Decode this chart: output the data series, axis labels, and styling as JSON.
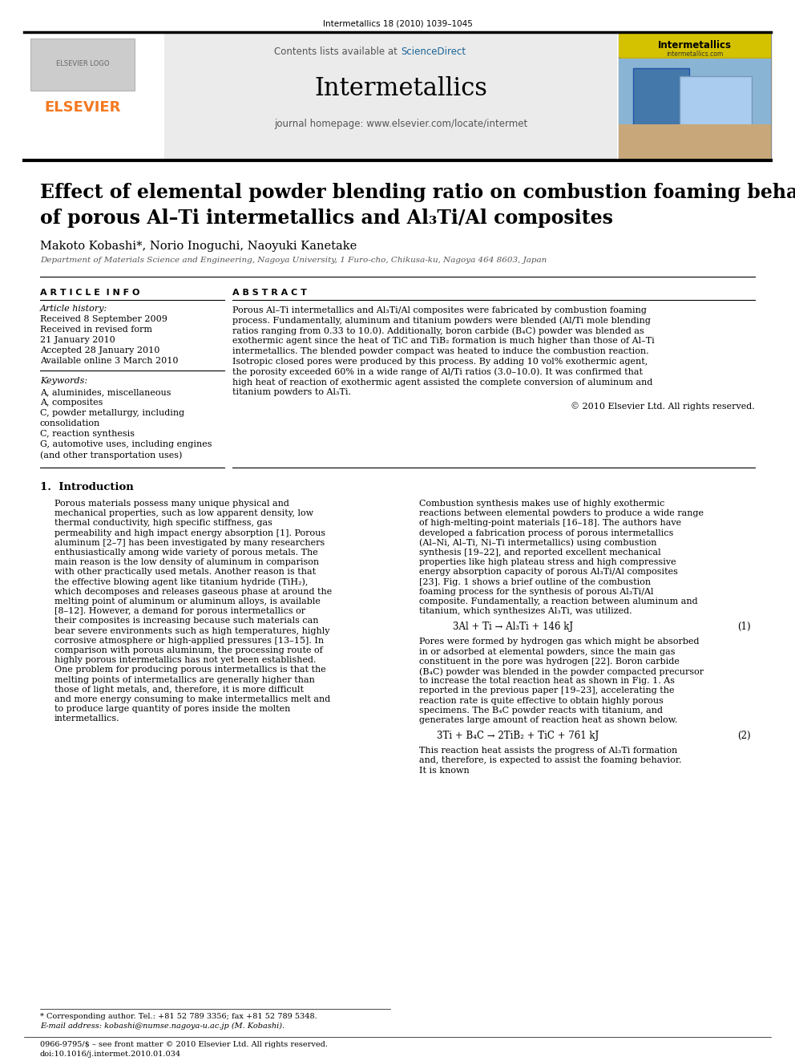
{
  "journal_ref": "Intermetallics 18 (2010) 1039–1045",
  "contents_line": "Contents lists available at ScienceDirect",
  "sciencedirect_color": "#1a6496",
  "journal_name": "Intermetallics",
  "journal_homepage": "journal homepage: www.elsevier.com/locate/intermet",
  "elsevier_color": "#f47920",
  "title_line1": "Effect of elemental powder blending ratio on combustion foaming behavior",
  "title_line2": "of porous Al–Ti intermetallics and Al₃Ti/Al composites",
  "authors": "Makoto Kobashi*, Norio Inoguchi, Naoyuki Kanetake",
  "affiliation": "Department of Materials Science and Engineering, Nagoya University, 1 Furo-cho, Chikusa-ku, Nagoya 464 8603, Japan",
  "article_info_header": "A R T I C L E  I N F O",
  "article_history_label": "Article history:",
  "history_items": [
    "Received 8 September 2009",
    "Received in revised form",
    "21 January 2010",
    "Accepted 28 January 2010",
    "Available online 3 March 2010"
  ],
  "keywords_label": "Keywords:",
  "keywords": [
    "A, aluminides, miscellaneous",
    "A, composites",
    "C, powder metallurgy, including",
    "consolidation",
    "C, reaction synthesis",
    "G, automotive uses, including engines",
    "(and other transportation uses)"
  ],
  "abstract_header": "A B S T R A C T",
  "abstract_text": "Porous Al–Ti intermetallics and Al₃Ti/Al composites were fabricated by combustion foaming process. Fundamentally, aluminum and titanium powders were blended (Al/Ti mole blending ratios ranging from 0.33 to 10.0). Additionally, boron carbide (B₄C) powder was blended as exothermic agent since the heat of TiC and TiB₂ formation is much higher than those of Al–Ti intermetallics. The blended powder compact was heated to induce the combustion reaction. Isotropic closed pores were produced by this process. By adding 10 vol% exothermic agent, the porosity exceeded 60% in a wide range of Al/Ti ratios (3.0–10.0). It was confirmed that high heat of reaction of exothermic agent assisted the complete conversion of aluminum and titanium powders to Al₃Ti.",
  "copyright": "© 2010 Elsevier Ltd. All rights reserved.",
  "intro_header": "1.  Introduction",
  "intro_col1": "Porous materials possess many unique physical and mechanical properties, such as low apparent density, low thermal conductivity, high specific stiffness, gas permeability and high impact energy absorption [1]. Porous aluminum [2–7] has been investigated by many researchers enthusiastically among wide variety of porous metals. The main reason is the low density of aluminum in comparison with other practically used metals. Another reason is that the effective blowing agent like titanium hydride (TiH₂), which decomposes and releases gaseous phase at around the melting point of aluminum or aluminum alloys, is available [8–12]. However, a demand for porous intermetallics or their composites is increasing because such materials can bear severe environments such as high temperatures, highly corrosive atmosphere or high-applied pressures [13–15]. In comparison with porous aluminum, the processing route of highly porous intermetallics has not yet been established. One problem for producing porous intermetallics is that the melting points of intermetallics are generally higher than those of light metals, and, therefore, it is more difficult and more energy consuming to make intermetallics melt and to produce large quantity of pores inside the molten intermetallics.",
  "intro_col2": "Combustion synthesis makes use of highly exothermic reactions between elemental powders to produce a wide range of high-melting-point materials [16–18]. The authors have developed a fabrication process of porous intermetallics (Al–Ni, Al–Ti, Ni–Ti intermetallics) using combustion synthesis [19–22], and reported excellent mechanical properties like high plateau stress and high compressive energy absorption capacity of porous Al₃Ti/Al composites [23]. Fig. 1 shows a brief outline of the combustion foaming process for the synthesis of porous Al₃Ti/Al composite. Fundamentally, a reaction between aluminum and titanium, which synthesizes Al₃Ti, was utilized.",
  "equation1": "3Al + Ti → Al₃Ti + 146 kJ",
  "eq1_num": "(1)",
  "para_after_eq1": "Pores were formed by hydrogen gas which might be absorbed in or adsorbed at elemental powders, since the main gas constituent in the pore was hydrogen [22]. Boron carbide (B₄C) powder was blended in the powder compacted precursor to increase the total reaction heat as shown in Fig. 1. As reported in the previous paper [19–23], accelerating the reaction rate is quite effective to obtain highly porous specimens. The B₄C powder reacts with titanium, and generates large amount of reaction heat as shown below.",
  "equation2": "3Ti + B₄C → 2TiB₂ + TiC + 761 kJ",
  "eq2_num": "(2)",
  "para_after_eq2": "This reaction heat assists the progress of Al₃Ti formation and, therefore, is expected to assist the foaming behavior. It is known",
  "footnote_star": "* Corresponding author. Tel.: +81 52 789 3356; fax +81 52 789 5348.",
  "footnote_email": "E-mail address: kobashi@numse.nagoya-u.ac.jp (M. Kobashi).",
  "footer_issn": "0966-9795/$ – see front matter © 2010 Elsevier Ltd. All rights reserved.",
  "footer_doi": "doi:10.1016/j.intermet.2010.01.034"
}
